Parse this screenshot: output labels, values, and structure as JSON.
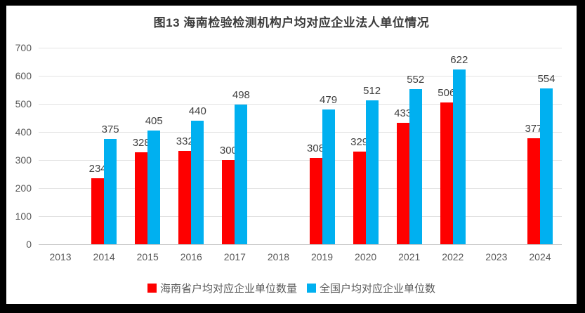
{
  "title": "图13 海南检验检测机构户均对应企业法人单位情况",
  "chart_data": {
    "type": "bar",
    "title": "图13 海南检验检测机构户均对应企业法人单位情况",
    "categories": [
      "2013",
      "2014",
      "2015",
      "2016",
      "2017",
      "2018",
      "2019",
      "2020",
      "2021",
      "2022",
      "2023",
      "2024"
    ],
    "series": [
      {
        "name": "海南省户均对应企业单位数量",
        "color": "#fe0000",
        "values": [
          null,
          234,
          328,
          332,
          300,
          null,
          308,
          329,
          433,
          506,
          null,
          377
        ]
      },
      {
        "name": "全国户均对应企业单位数",
        "color": "#00b0f0",
        "values": [
          null,
          375,
          405,
          440,
          498,
          null,
          479,
          512,
          552,
          622,
          null,
          554
        ]
      }
    ],
    "xlabel": "",
    "ylabel": "",
    "ylim": [
      0,
      700
    ],
    "ytick_step": 100,
    "grid": true,
    "legend_position": "bottom"
  },
  "colors": {
    "frame": "#000000",
    "background": "#ffffff",
    "gridline": "#e2e2e2",
    "axis_line": "#c9c9c9",
    "tick_text": "#595959",
    "label_text": "#404040",
    "title_text": "#3b3b3b"
  }
}
